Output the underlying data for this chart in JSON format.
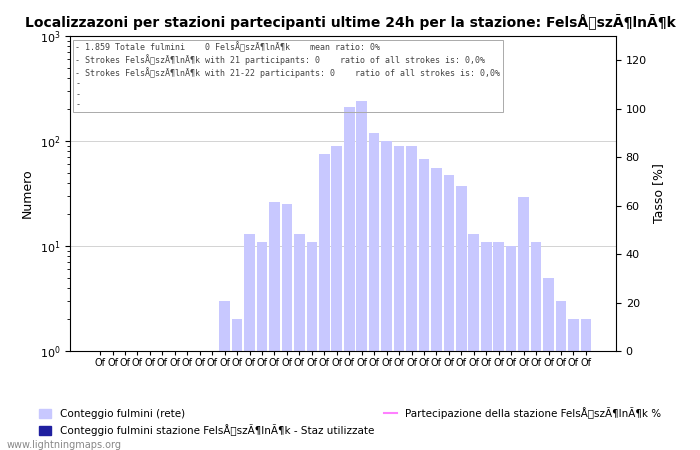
{
  "title": "Localizzazoni per stazioni partecipanti ultime 24h per la stazione: FelsÅszÃ¶lnÃ¶k",
  "ylabel_left": "Numero",
  "ylabel_right": "Tasso [%]",
  "info_lines": [
    "1.859 Totale fulmini    0 FelsÅszÃ¶lnÃ¶k    mean ratio: 0%",
    "Strokes FelsÅszÃ¶lnÃ¶k with 21 participants: 0    ratio of all strokes is: 0,0%",
    "Strokes FelsÅszÃ¶lnÃ¶k with 21-22 participants: 0    ratio of all strokes is: 0,0%"
  ],
  "bar_values": [
    1,
    1,
    1,
    1,
    1,
    1,
    1,
    1,
    1,
    1,
    3,
    2,
    13,
    11,
    26,
    25,
    13,
    11,
    75,
    90,
    210,
    240,
    120,
    100,
    90,
    90,
    68,
    55,
    47,
    37,
    13,
    11,
    11,
    10,
    29,
    11,
    5,
    3,
    2,
    2
  ],
  "bar_color_light": "#c8c8ff",
  "bar_color_dark": "#2020a0",
  "line_color": "#ff80ff",
  "background_color": "#ffffff",
  "grid_color": "#999999",
  "ylim_right": [
    0,
    130
  ],
  "yticks_right": [
    0,
    20,
    40,
    60,
    80,
    100,
    120
  ],
  "watermark": "www.lightningmaps.org",
  "legend_label_0": "Conteggio fulmini (rete)",
  "legend_label_1": "Conteggio fulmini stazione FelsÅszÃ¶lnÃ¶k - Staz utilizzate",
  "legend_label_2": "Partecipazione della stazione FelsÅszÃ¶lnÃ¶k %"
}
